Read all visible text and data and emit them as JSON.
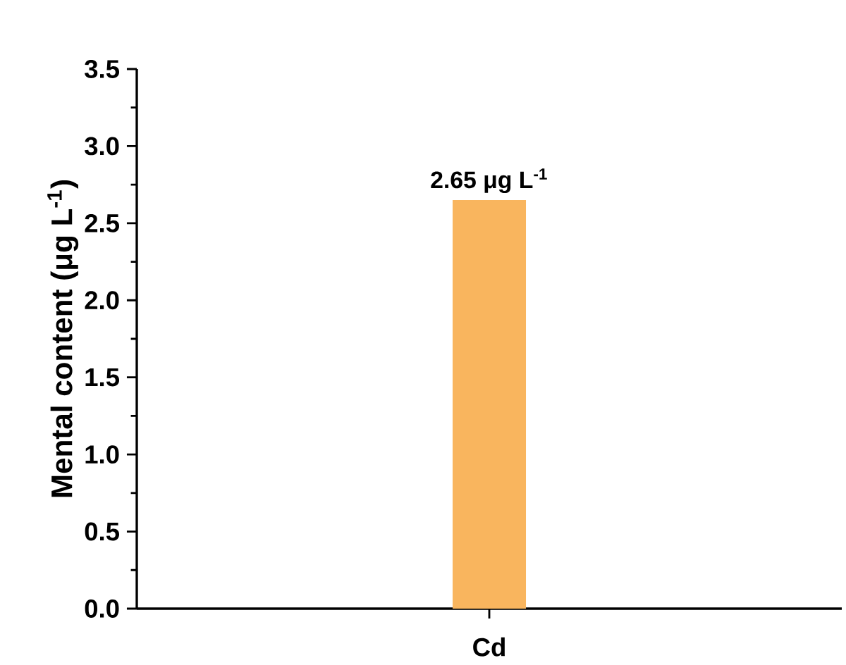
{
  "chart_data": {
    "type": "bar",
    "ylabel": "Mental content (μg L$^{-1}$)",
    "categories": [
      "Cd"
    ],
    "values": [
      2.65
    ],
    "value_labels": [
      "2.65 μg L$^{-1}$"
    ],
    "color": "#f9b55e",
    "ylim": [
      0,
      3.5
    ],
    "yticks": [
      {
        "value": 0,
        "label": "0.0"
      },
      0.5,
      {
        "value": 1,
        "label": "1.0"
      },
      1.5,
      {
        "value": 2,
        "label": "2.0"
      },
      2.5,
      {
        "value": 3,
        "label": "3.0"
      },
      3.5
    ],
    "grid": false
  }
}
